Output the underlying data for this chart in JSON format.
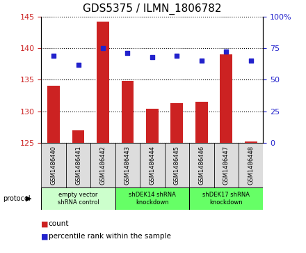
{
  "title": "GDS5375 / ILMN_1806782",
  "samples": [
    "GSM1486440",
    "GSM1486441",
    "GSM1486442",
    "GSM1486443",
    "GSM1486444",
    "GSM1486445",
    "GSM1486446",
    "GSM1486447",
    "GSM1486448"
  ],
  "count_values": [
    134.0,
    127.0,
    144.2,
    134.8,
    130.4,
    131.3,
    131.5,
    139.0,
    125.2
  ],
  "percentile_values": [
    69,
    62,
    75,
    71,
    68,
    69,
    65,
    72,
    65
  ],
  "ylim_left": [
    125,
    145
  ],
  "ylim_right": [
    0,
    100
  ],
  "yticks_left": [
    125,
    130,
    135,
    140,
    145
  ],
  "yticks_right": [
    0,
    25,
    50,
    75,
    100
  ],
  "bar_color": "#cc2222",
  "dot_color": "#2222cc",
  "bar_bottom": 125,
  "groups": [
    {
      "label": "empty vector\nshRNA control",
      "start": 0,
      "end": 3,
      "color": "#ccffcc"
    },
    {
      "label": "shDEK14 shRNA\nknockdown",
      "start": 3,
      "end": 6,
      "color": "#66ff66"
    },
    {
      "label": "shDEK17 shRNA\nknockdown",
      "start": 6,
      "end": 9,
      "color": "#66ff66"
    }
  ],
  "legend_count_label": "count",
  "legend_pct_label": "percentile rank within the sample",
  "protocol_label": "protocol",
  "figsize": [
    4.4,
    3.63
  ],
  "dpi": 100,
  "background_color": "#ffffff",
  "tick_label_color_left": "#cc2222",
  "tick_label_color_right": "#2222cc",
  "title_fontsize": 11,
  "sample_cell_color": "#dddddd"
}
